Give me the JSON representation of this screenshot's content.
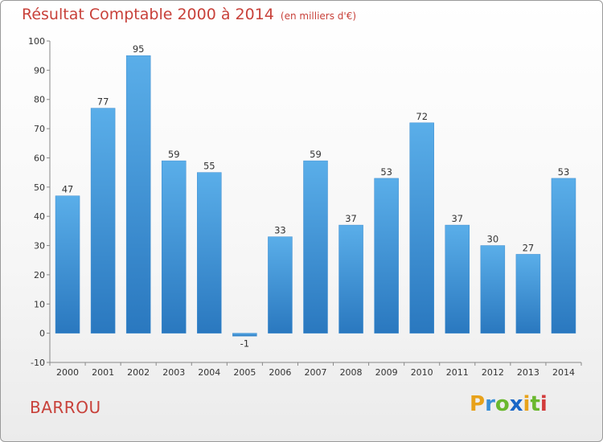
{
  "header": {
    "title": "Résultat Comptable 2000 à 2014",
    "subtitle": "(en milliers d'€)"
  },
  "commune": "BARROU",
  "logo": {
    "text": "Proxiti",
    "letters": [
      {
        "ch": "P",
        "color": "#e8a21a"
      },
      {
        "ch": "r",
        "color": "#3a8fd6"
      },
      {
        "ch": "o",
        "color": "#6ab82e"
      },
      {
        "ch": "x",
        "color": "#1a67c7"
      },
      {
        "ch": "i",
        "color": "#e8a21a"
      },
      {
        "ch": "t",
        "color": "#6ab82e"
      },
      {
        "ch": "i",
        "color": "#d23b3b"
      }
    ]
  },
  "chart_data": {
    "type": "bar",
    "categories": [
      "2000",
      "2001",
      "2002",
      "2003",
      "2004",
      "2005",
      "2006",
      "2007",
      "2008",
      "2009",
      "2010",
      "2011",
      "2012",
      "2013",
      "2014"
    ],
    "values": [
      47,
      77,
      95,
      59,
      55,
      -1,
      33,
      59,
      37,
      53,
      72,
      37,
      30,
      27,
      53
    ],
    "ylim": [
      -10,
      100
    ],
    "yticks": [
      -10,
      0,
      10,
      20,
      30,
      40,
      50,
      60,
      70,
      80,
      90,
      100
    ],
    "grid": false,
    "colors": {
      "bar_top": "#5aaee9",
      "bar_bottom": "#2a78bf",
      "axis": "#888888"
    }
  }
}
